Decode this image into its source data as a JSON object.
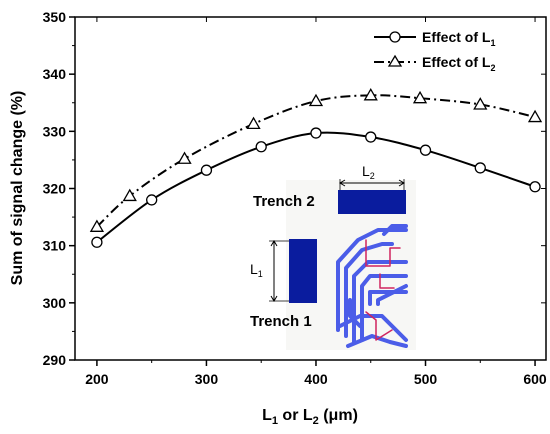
{
  "chart_data": {
    "type": "line",
    "ylabel": "Sum of signal change (%)",
    "xlabel": {
      "prefix": "L",
      "sub": "1",
      "middle": " or L",
      "sub2": "2",
      "unit": " (μm)"
    },
    "xlim": [
      180,
      610
    ],
    "ylim": [
      290,
      350
    ],
    "xticks": [
      200,
      300,
      400,
      500,
      600
    ],
    "yticks": [
      290,
      300,
      310,
      320,
      330,
      340,
      350
    ],
    "grid": false,
    "legend_position": "top-right",
    "series": [
      {
        "name": "Effect of L1",
        "label_main": "Effect of L",
        "label_sub": "1",
        "marker": "circle",
        "line": "solid",
        "color": "#000000",
        "x": [
          200,
          250,
          300,
          350,
          400,
          450,
          500,
          550,
          600
        ],
        "y": [
          310.6,
          318.0,
          323.2,
          327.3,
          329.7,
          329.0,
          326.7,
          323.6,
          320.3
        ]
      },
      {
        "name": "Effect of L2",
        "label_main": "Effect of L",
        "label_sub": "2",
        "marker": "triangle",
        "line": "dash-dot",
        "color": "#000000",
        "x": [
          200,
          230,
          280,
          343,
          400,
          450,
          495,
          550,
          600
        ],
        "y": [
          313.3,
          318.7,
          325.2,
          331.3,
          335.3,
          336.3,
          335.8,
          334.7,
          332.5
        ]
      }
    ],
    "inset": {
      "trench2_label": "Trench 2",
      "trench1_label": "Trench 1",
      "l1_label": {
        "main": "L",
        "sub": "1"
      },
      "l2_label": {
        "main": "L",
        "sub": "2"
      },
      "trench_color": "#0a1c9e",
      "wire_color": "#4b5de8",
      "accent_color": "#d0245f"
    }
  }
}
